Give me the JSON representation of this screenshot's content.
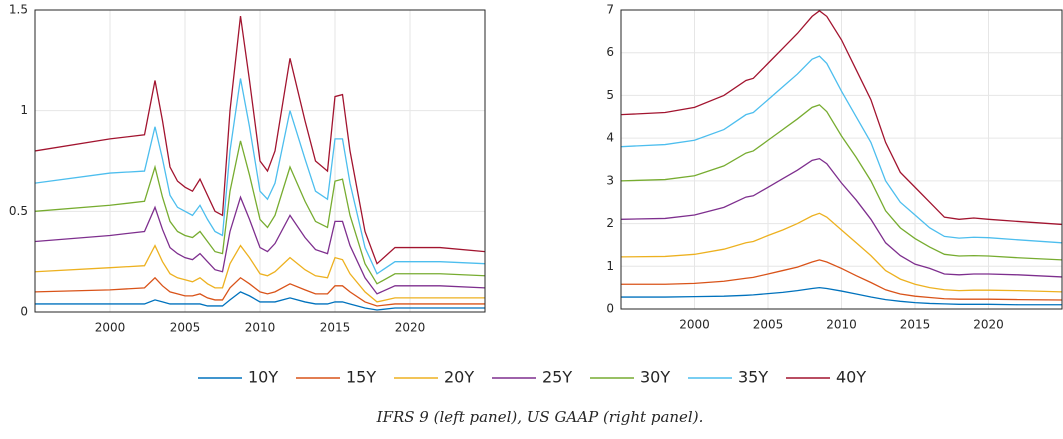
{
  "chart_data": [
    {
      "type": "line",
      "x": [
        1995,
        2000,
        2002.3,
        2003,
        2003.5,
        2004,
        2004.5,
        2005,
        2005.5,
        2006,
        2006.5,
        2007,
        2007.5,
        2008,
        2008.7,
        2009.3,
        2010,
        2010.5,
        2011,
        2012,
        2013,
        2013.7,
        2014.5,
        2015,
        2015.5,
        2016,
        2017,
        2017.8,
        2019,
        2022,
        2025
      ],
      "xlim": [
        1995,
        2025
      ],
      "xticks": [
        2000,
        2005,
        2010,
        2015,
        2020
      ],
      "ylim": [
        0,
        1.5
      ],
      "yticks": [
        0,
        0.5,
        1,
        1.5
      ],
      "grid": true,
      "series": [
        {
          "name": "10Y",
          "color": "#0072BD",
          "values": [
            0.04,
            0.04,
            0.04,
            0.06,
            0.05,
            0.04,
            0.04,
            0.04,
            0.04,
            0.04,
            0.03,
            0.03,
            0.03,
            0.06,
            0.1,
            0.08,
            0.05,
            0.05,
            0.05,
            0.07,
            0.05,
            0.04,
            0.04,
            0.05,
            0.05,
            0.04,
            0.02,
            0.01,
            0.02,
            0.02,
            0.02
          ]
        },
        {
          "name": "15Y",
          "color": "#D95319",
          "values": [
            0.1,
            0.11,
            0.12,
            0.17,
            0.13,
            0.1,
            0.09,
            0.08,
            0.08,
            0.09,
            0.07,
            0.06,
            0.06,
            0.12,
            0.17,
            0.14,
            0.1,
            0.09,
            0.1,
            0.14,
            0.11,
            0.09,
            0.09,
            0.13,
            0.13,
            0.1,
            0.05,
            0.03,
            0.04,
            0.04,
            0.04
          ]
        },
        {
          "name": "20Y",
          "color": "#EDB120",
          "values": [
            0.2,
            0.22,
            0.23,
            0.33,
            0.25,
            0.19,
            0.17,
            0.16,
            0.15,
            0.17,
            0.14,
            0.12,
            0.12,
            0.24,
            0.33,
            0.27,
            0.19,
            0.18,
            0.2,
            0.27,
            0.21,
            0.18,
            0.17,
            0.27,
            0.26,
            0.19,
            0.1,
            0.05,
            0.07,
            0.07,
            0.07
          ]
        },
        {
          "name": "25Y",
          "color": "#7E2F8E",
          "values": [
            0.35,
            0.38,
            0.4,
            0.52,
            0.41,
            0.32,
            0.29,
            0.27,
            0.26,
            0.29,
            0.25,
            0.21,
            0.2,
            0.4,
            0.57,
            0.46,
            0.32,
            0.3,
            0.34,
            0.48,
            0.37,
            0.31,
            0.29,
            0.45,
            0.45,
            0.33,
            0.17,
            0.09,
            0.13,
            0.13,
            0.12
          ]
        },
        {
          "name": "30Y",
          "color": "#77AC30",
          "values": [
            0.5,
            0.53,
            0.55,
            0.72,
            0.57,
            0.45,
            0.4,
            0.38,
            0.37,
            0.4,
            0.35,
            0.3,
            0.29,
            0.6,
            0.85,
            0.68,
            0.46,
            0.42,
            0.48,
            0.72,
            0.55,
            0.45,
            0.42,
            0.65,
            0.66,
            0.48,
            0.24,
            0.14,
            0.19,
            0.19,
            0.18
          ]
        },
        {
          "name": "35Y",
          "color": "#4DBEEE",
          "values": [
            0.64,
            0.69,
            0.7,
            0.92,
            0.76,
            0.58,
            0.52,
            0.5,
            0.48,
            0.53,
            0.46,
            0.4,
            0.38,
            0.8,
            1.16,
            0.92,
            0.6,
            0.56,
            0.64,
            1.0,
            0.76,
            0.6,
            0.56,
            0.86,
            0.86,
            0.64,
            0.32,
            0.19,
            0.25,
            0.25,
            0.24
          ]
        },
        {
          "name": "40Y",
          "color": "#A2142F",
          "values": [
            0.8,
            0.86,
            0.88,
            1.15,
            0.95,
            0.72,
            0.65,
            0.62,
            0.6,
            0.66,
            0.58,
            0.5,
            0.48,
            1.0,
            1.47,
            1.15,
            0.75,
            0.7,
            0.8,
            1.26,
            0.95,
            0.75,
            0.7,
            1.07,
            1.08,
            0.8,
            0.4,
            0.24,
            0.32,
            0.32,
            0.3
          ]
        }
      ]
    },
    {
      "type": "line",
      "x": [
        1995,
        1998,
        2000,
        2002,
        2003.5,
        2004,
        2005,
        2006,
        2007,
        2008,
        2008.5,
        2009,
        2010,
        2011,
        2012,
        2013,
        2014,
        2015,
        2016,
        2017,
        2018,
        2019,
        2020,
        2022,
        2025
      ],
      "xlim": [
        1995,
        2025
      ],
      "xticks": [
        2000,
        2005,
        2010,
        2015,
        2020
      ],
      "ylim": [
        0,
        7
      ],
      "yticks": [
        0,
        1,
        2,
        3,
        4,
        5,
        6,
        7
      ],
      "grid": true,
      "series": [
        {
          "name": "10Y",
          "color": "#0072BD",
          "values": [
            0.28,
            0.28,
            0.29,
            0.3,
            0.32,
            0.33,
            0.36,
            0.39,
            0.43,
            0.48,
            0.5,
            0.48,
            0.42,
            0.35,
            0.28,
            0.22,
            0.18,
            0.15,
            0.13,
            0.12,
            0.11,
            0.11,
            0.11,
            0.1,
            0.1
          ]
        },
        {
          "name": "15Y",
          "color": "#D95319",
          "values": [
            0.58,
            0.58,
            0.6,
            0.65,
            0.72,
            0.74,
            0.82,
            0.9,
            0.98,
            1.1,
            1.15,
            1.1,
            0.95,
            0.78,
            0.62,
            0.45,
            0.35,
            0.3,
            0.27,
            0.24,
            0.23,
            0.23,
            0.23,
            0.22,
            0.21
          ]
        },
        {
          "name": "20Y",
          "color": "#EDB120",
          "values": [
            1.22,
            1.23,
            1.28,
            1.4,
            1.55,
            1.58,
            1.72,
            1.85,
            2.0,
            2.18,
            2.24,
            2.15,
            1.85,
            1.55,
            1.25,
            0.9,
            0.7,
            0.58,
            0.5,
            0.45,
            0.43,
            0.44,
            0.44,
            0.43,
            0.4
          ]
        },
        {
          "name": "25Y",
          "color": "#7E2F8E",
          "values": [
            2.1,
            2.12,
            2.2,
            2.38,
            2.62,
            2.65,
            2.85,
            3.05,
            3.25,
            3.48,
            3.52,
            3.4,
            2.95,
            2.55,
            2.1,
            1.55,
            1.25,
            1.05,
            0.95,
            0.82,
            0.8,
            0.82,
            0.82,
            0.8,
            0.75
          ]
        },
        {
          "name": "30Y",
          "color": "#77AC30",
          "values": [
            3.0,
            3.03,
            3.12,
            3.35,
            3.65,
            3.7,
            3.95,
            4.2,
            4.45,
            4.72,
            4.78,
            4.62,
            4.05,
            3.55,
            3.0,
            2.3,
            1.9,
            1.65,
            1.45,
            1.28,
            1.24,
            1.25,
            1.24,
            1.2,
            1.15
          ]
        },
        {
          "name": "35Y",
          "color": "#4DBEEE",
          "values": [
            3.8,
            3.85,
            3.95,
            4.2,
            4.55,
            4.6,
            4.9,
            5.2,
            5.5,
            5.85,
            5.92,
            5.75,
            5.1,
            4.5,
            3.9,
            3.0,
            2.5,
            2.2,
            1.9,
            1.7,
            1.66,
            1.68,
            1.67,
            1.62,
            1.55
          ]
        },
        {
          "name": "40Y",
          "color": "#A2142F",
          "values": [
            4.55,
            4.6,
            4.72,
            5.0,
            5.35,
            5.4,
            5.75,
            6.1,
            6.45,
            6.85,
            6.98,
            6.85,
            6.3,
            5.6,
            4.9,
            3.9,
            3.2,
            2.85,
            2.5,
            2.15,
            2.1,
            2.13,
            2.1,
            2.05,
            1.98
          ]
        }
      ]
    }
  ],
  "caption": "IFRS 9 (left panel), US GAAP (right panel)."
}
